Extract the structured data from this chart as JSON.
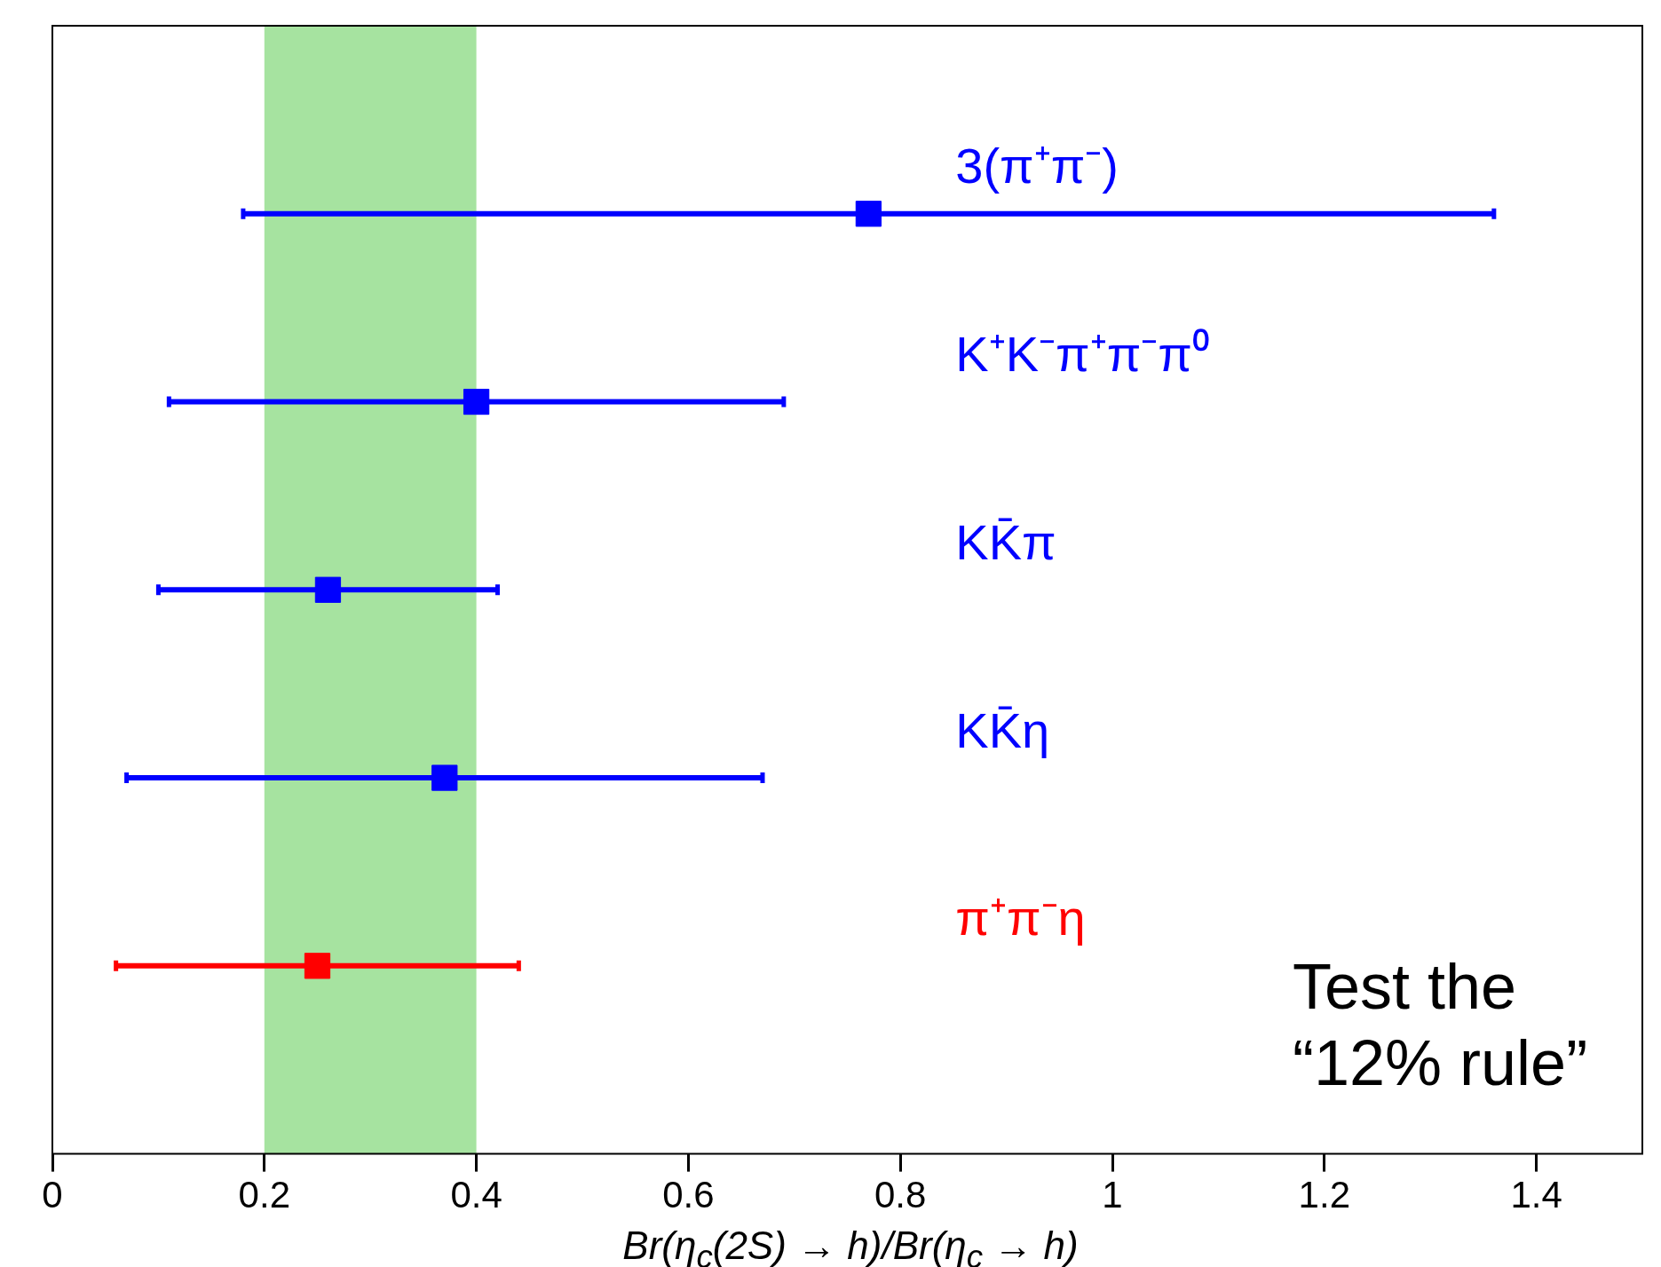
{
  "chart_data": {
    "type": "scatter",
    "orientation": "horizontal",
    "xlabel": "Br(η$_{c}$(2S) → h)/Br(η$_{c}$ → h)",
    "categories": [
      "3(π⁺π⁻)",
      "K⁺K⁻π⁺π⁻π⁰",
      "KK̄π",
      "KK̄η",
      "π⁺π⁻η"
    ],
    "values": [
      0.77,
      0.4,
      0.26,
      0.37,
      0.25
    ],
    "errors": [
      [
        0.18,
        1.36
      ],
      [
        0.11,
        0.69
      ],
      [
        0.1,
        0.42
      ],
      [
        0.07,
        0.67
      ],
      [
        0.06,
        0.44
      ]
    ],
    "colors": [
      "#0000ff",
      "#0000ff",
      "#0000ff",
      "#0000ff",
      "#ff0000"
    ],
    "xlim": [
      0,
      1.5
    ],
    "xticks": [
      0,
      0.2,
      0.4,
      0.6,
      0.8,
      1,
      1.2,
      1.4
    ],
    "bands": [
      {
        "axis": "x",
        "from": 0.2,
        "to": 0.4,
        "color": "#a6e3a0"
      }
    ],
    "annotations": [
      "Test the “12% rule”"
    ],
    "marker": "square",
    "grid": false,
    "legend": false
  }
}
